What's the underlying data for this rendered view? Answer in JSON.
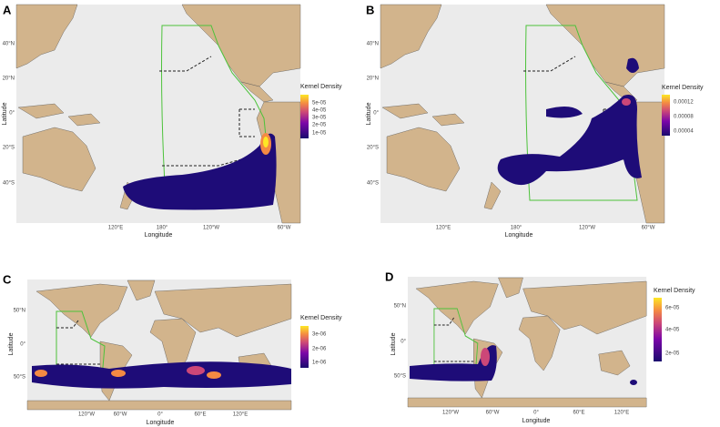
{
  "panels": [
    {
      "label": "A",
      "x_axis_title": "Longitude",
      "y_axis_title": "Latitude",
      "x_tick_labels": [
        "120°E",
        "180°",
        "120°W",
        "60°W"
      ],
      "y_tick_labels": [
        "40°N",
        "20°N",
        "0°",
        "20°S",
        "40°S"
      ],
      "legend": {
        "title": "Kernel Density",
        "labels": [
          "5e-05",
          "4e-05",
          "3e-05",
          "2e-05",
          "1e-05"
        ]
      }
    },
    {
      "label": "B",
      "x_axis_title": "Longitude",
      "y_axis_title": "Latitude",
      "x_tick_labels": [
        "120°E",
        "180°",
        "120°W",
        "60°W"
      ],
      "y_tick_labels": [
        "40°N",
        "20°N",
        "0°",
        "20°S",
        "40°S"
      ],
      "legend": {
        "title": "Kernel Density",
        "labels": [
          "0.00012",
          "0.00008",
          "0.00004"
        ]
      }
    },
    {
      "label": "C",
      "x_axis_title": "Longitude",
      "y_axis_title": "Latitude",
      "x_tick_labels": [
        "120°W",
        "60°W",
        "0°",
        "60°E",
        "120°E"
      ],
      "y_tick_labels": [
        "50°N",
        "0°",
        "50°S"
      ],
      "legend": {
        "title": "Kernel Density",
        "labels": [
          "3e-06",
          "2e-06",
          "1e-06"
        ]
      }
    },
    {
      "label": "D",
      "x_axis_title": "Longitude",
      "y_axis_title": "Latitude",
      "x_tick_labels": [
        "120°W",
        "60°W",
        "0°",
        "60°E",
        "120°E"
      ],
      "y_tick_labels": [
        "50°N",
        "0°",
        "50°S"
      ],
      "legend": {
        "title": "Kernel Density",
        "labels": [
          "6e-05",
          "4e-05",
          "2e-05"
        ]
      }
    }
  ]
}
